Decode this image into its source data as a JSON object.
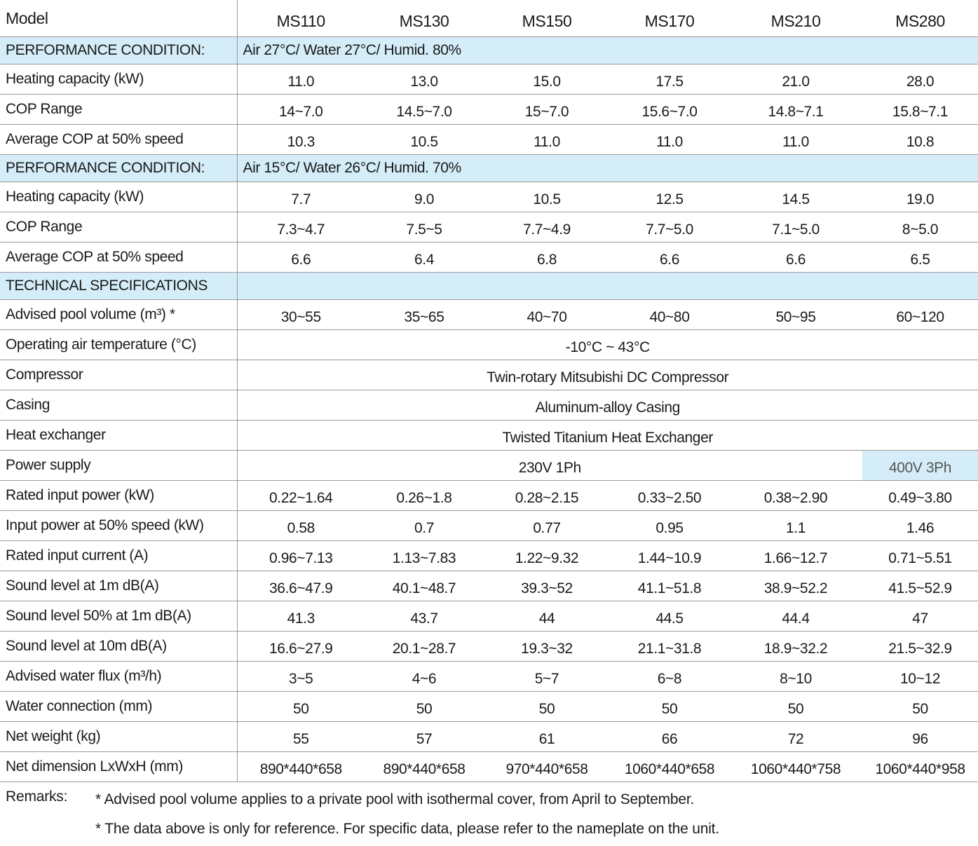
{
  "header": {
    "label": "Model",
    "models": [
      "MS110",
      "MS130",
      "MS150",
      "MS170",
      "MS210",
      "MS280"
    ]
  },
  "rows": [
    {
      "section": "PERFORMANCE CONDITION:",
      "condition": "Air 27°C/ Water 27°C/ Humid. 80%"
    },
    {
      "label": "Heating capacity (kW)",
      "values": [
        "11.0",
        "13.0",
        "15.0",
        "17.5",
        "21.0",
        "28.0"
      ]
    },
    {
      "label": "COP Range",
      "values": [
        "14~7.0",
        "14.5~7.0",
        "15~7.0",
        "15.6~7.0",
        "14.8~7.1",
        "15.8~7.1"
      ]
    },
    {
      "label": "Average COP at 50% speed",
      "values": [
        "10.3",
        "10.5",
        "11.0",
        "11.0",
        "11.0",
        "10.8"
      ]
    },
    {
      "section": "PERFORMANCE CONDITION:",
      "condition": "Air 15°C/ Water 26°C/ Humid. 70%"
    },
    {
      "label": "Heating capacity (kW)",
      "values": [
        "7.7",
        "9.0",
        "10.5",
        "12.5",
        "14.5",
        "19.0"
      ]
    },
    {
      "label": "COP Range",
      "values": [
        "7.3~4.7",
        "7.5~5",
        "7.7~4.9",
        "7.7~5.0",
        "7.1~5.0",
        "8~5.0"
      ]
    },
    {
      "label": "Average COP at 50% speed",
      "values": [
        "6.6",
        "6.4",
        "6.8",
        "6.6",
        "6.6",
        "6.5"
      ]
    },
    {
      "section": "TECHNICAL SPECIFICATIONS"
    },
    {
      "label": "Advised pool volume (m³) *",
      "values": [
        "30~55",
        "35~65",
        "40~70",
        "40~80",
        "50~95",
        "60~120"
      ]
    },
    {
      "label": "Operating air temperature (°C)",
      "span": "-10°C ~ 43°C"
    },
    {
      "label": "Compressor",
      "span": "Twin-rotary Mitsubishi DC Compressor"
    },
    {
      "label": "Casing",
      "span": "Aluminum-alloy Casing"
    },
    {
      "label": "Heat exchanger",
      "span": "Twisted Titanium Heat Exchanger"
    },
    {
      "label": "Power supply",
      "span": "230V 1Ph",
      "span_last": "400V 3Ph"
    },
    {
      "label": "Rated input power (kW)",
      "values": [
        "0.22~1.64",
        "0.26~1.8",
        "0.28~2.15",
        "0.33~2.50",
        "0.38~2.90",
        "0.49~3.80"
      ]
    },
    {
      "label": "Input power at 50% speed (kW)",
      "values": [
        "0.58",
        "0.7",
        "0.77",
        "0.95",
        "1.1",
        "1.46"
      ]
    },
    {
      "label": "Rated input current (A)",
      "values": [
        "0.96~7.13",
        "1.13~7.83",
        "1.22~9.32",
        "1.44~10.9",
        "1.66~12.7",
        "0.71~5.51"
      ]
    },
    {
      "label": "Sound level  at 1m dB(A)",
      "values": [
        "36.6~47.9",
        "40.1~48.7",
        "39.3~52",
        "41.1~51.8",
        "38.9~52.2",
        "41.5~52.9"
      ]
    },
    {
      "label": "Sound level  50% at 1m dB(A)",
      "values": [
        "41.3",
        "43.7",
        "44",
        "44.5",
        "44.4",
        "47"
      ]
    },
    {
      "label": "Sound level  at 10m dB(A)",
      "values": [
        "16.6~27.9",
        "20.1~28.7",
        "19.3~32",
        "21.1~31.8",
        "18.9~32.2",
        "21.5~32.9"
      ]
    },
    {
      "label": "Advised water flux (m³/h)",
      "values": [
        "3~5",
        "4~6",
        "5~7",
        "6~8",
        "8~10",
        "10~12"
      ]
    },
    {
      "label": "Water connection (mm)",
      "values": [
        "50",
        "50",
        "50",
        "50",
        "50",
        "50"
      ]
    },
    {
      "label": "Net weight (kg)",
      "values": [
        "55",
        "57",
        "61",
        "66",
        "72",
        "96"
      ]
    },
    {
      "label": "Net dimension LxWxH (mm)",
      "values": [
        "890*440*658",
        "890*440*658",
        "970*440*658",
        "1060*440*658",
        "1060*440*758",
        "1060*440*958"
      ]
    }
  ],
  "remarks": {
    "label": "Remarks:",
    "notes": [
      "* Advised pool volume applies to a private pool with isothermal cover, from April to September.",
      "* The data above is only for reference. For specific data, please refer to the nameplate on the unit."
    ]
  }
}
